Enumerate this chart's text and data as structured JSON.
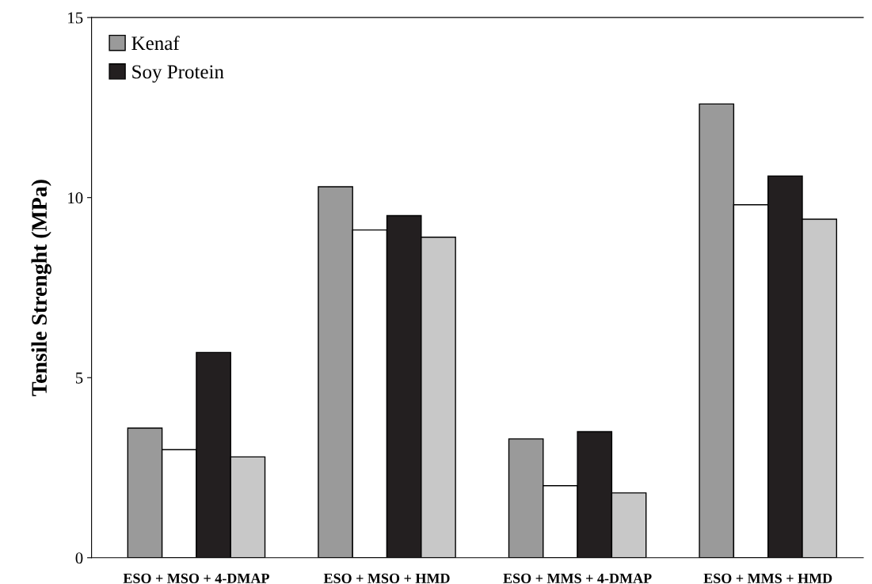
{
  "chart_data": {
    "type": "bar",
    "ylabel": "Tensile Strenght (MPa)",
    "categories": [
      "ESO + MSO + 4-DMAP",
      "ESO + MSO + HMD",
      "ESO + MMS + 4-DMAP",
      "ESO + MMS + HMD"
    ],
    "series": [
      {
        "name": "Kenaf",
        "color": "#9a9a9a",
        "values": [
          3.6,
          10.3,
          3.3,
          12.6
        ]
      },
      {
        "color": "#ffffff",
        "values": [
          3.0,
          9.1,
          2.0,
          9.8
        ]
      },
      {
        "name": "Soy Protein",
        "color": "#231f20",
        "values": [
          5.7,
          9.5,
          3.5,
          10.6
        ]
      },
      {
        "color": "#c8c8c8",
        "values": [
          2.8,
          8.9,
          1.8,
          9.4
        ]
      }
    ],
    "ylim": [
      0,
      15
    ],
    "yticks": [
      0,
      5,
      10,
      15
    ],
    "grid": false,
    "legend": "top left"
  }
}
